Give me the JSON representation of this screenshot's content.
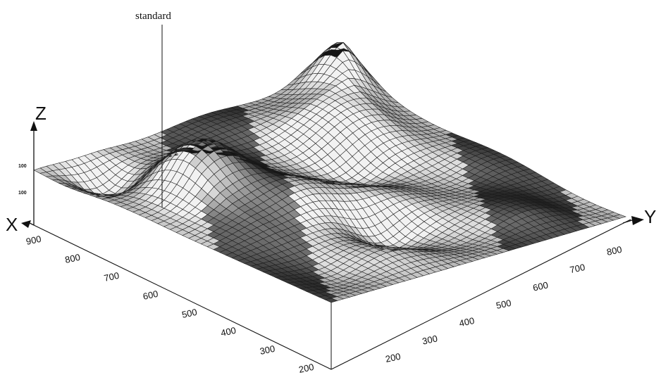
{
  "chart_data": {
    "type": "surface3d",
    "title": "",
    "annotation": "standard",
    "axes": {
      "x": {
        "label": "X",
        "ticks": [
          "900",
          "800",
          "700",
          "600",
          "500",
          "400",
          "300",
          "200"
        ]
      },
      "y": {
        "label": "Y",
        "ticks": [
          "200",
          "300",
          "400",
          "500",
          "600",
          "700",
          "800"
        ]
      },
      "z": {
        "label": "Z",
        "ticks": [
          "100",
          "100"
        ]
      }
    },
    "grid": true,
    "colors": {
      "mesh_light": "#e6e6e6",
      "mesh_dark": "#111111",
      "wire": "#1a1a1a"
    }
  }
}
